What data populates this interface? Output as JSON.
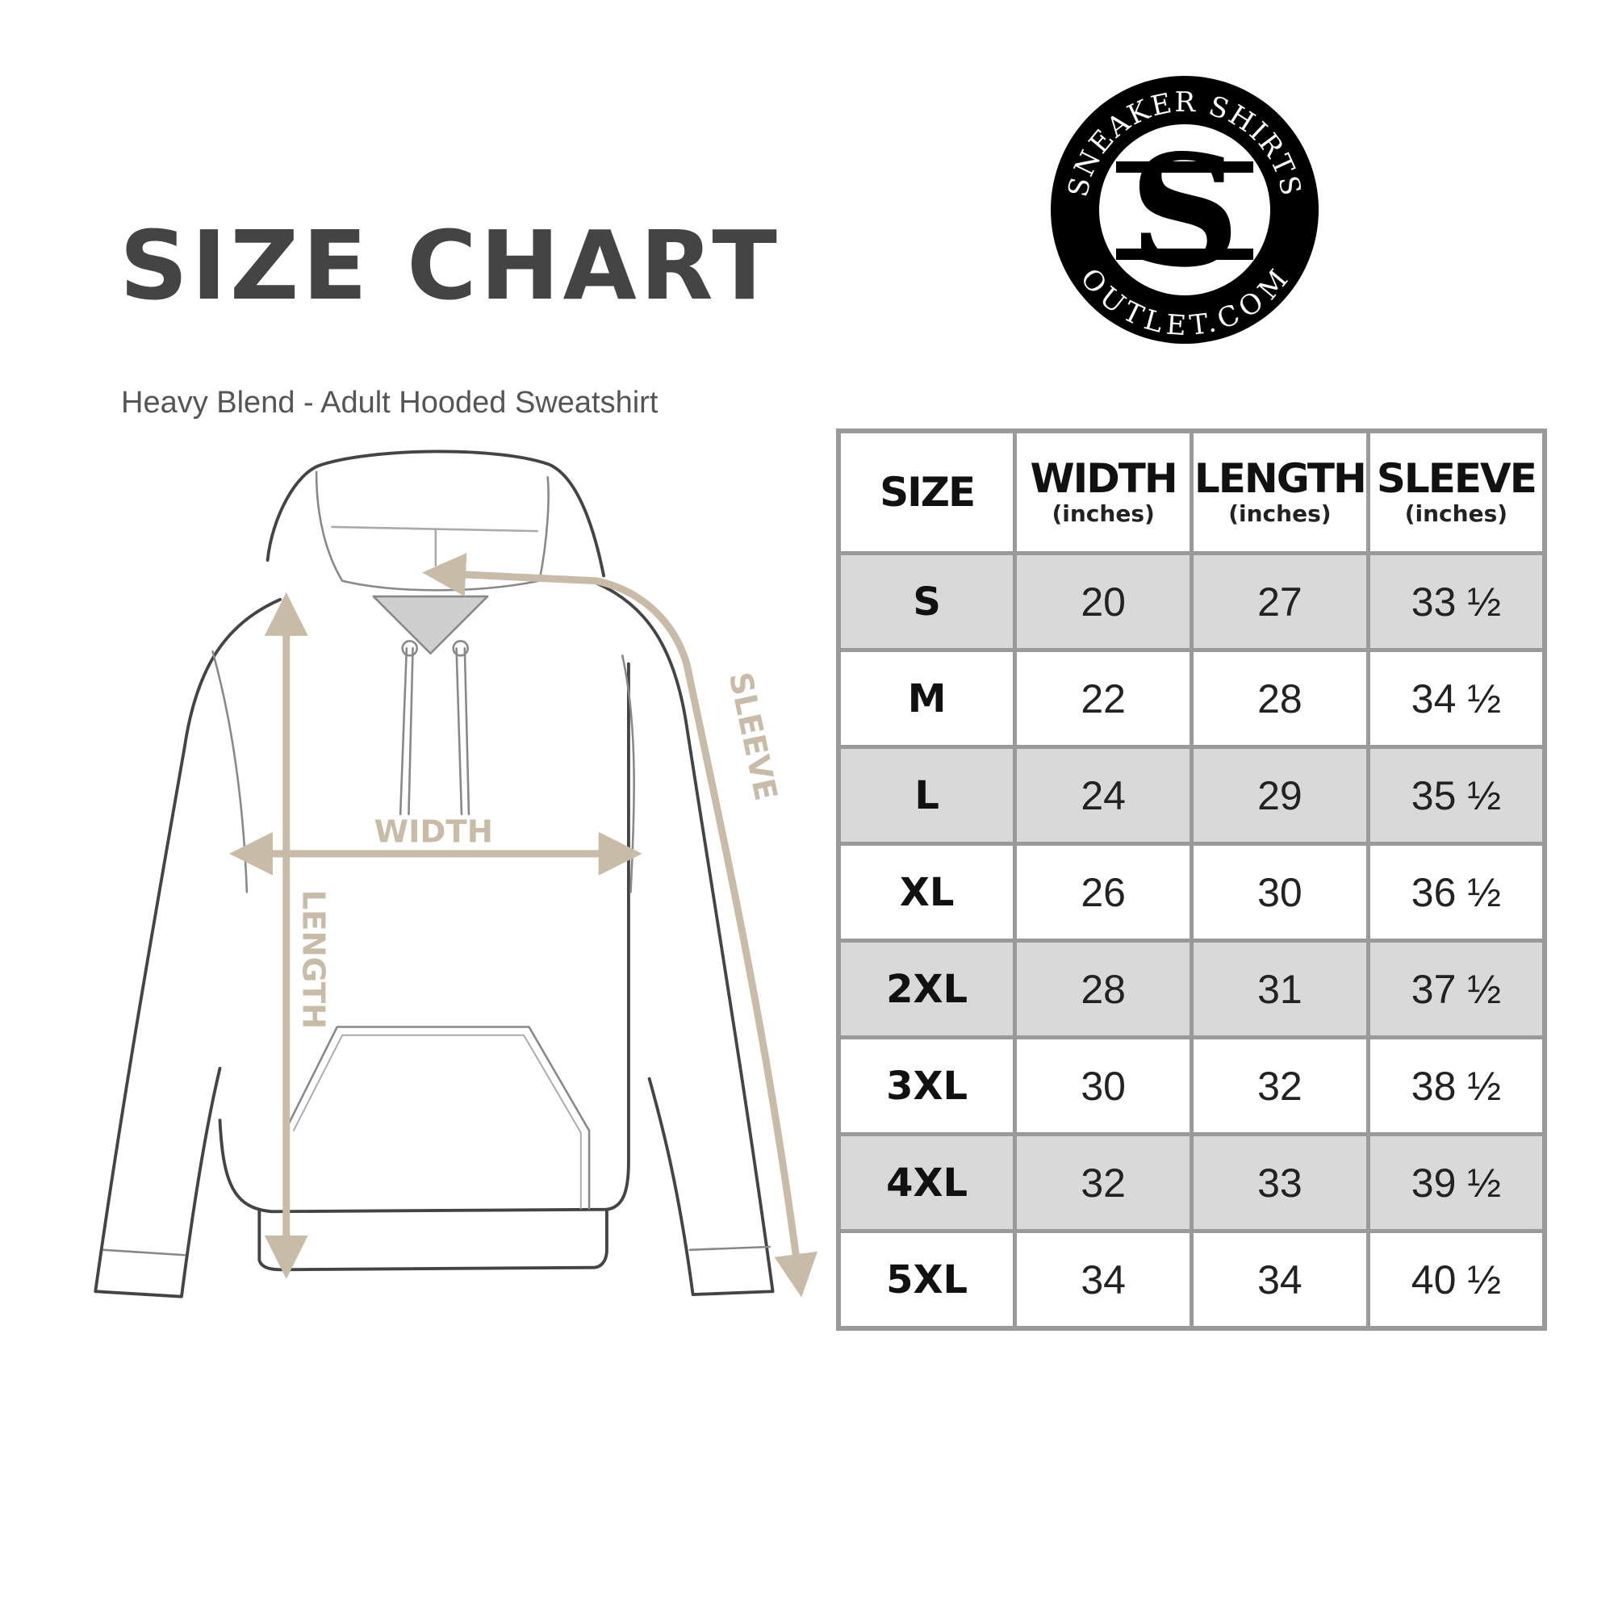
{
  "header": {
    "title": "SIZE CHART",
    "subtitle": "Heavy Blend - Adult Hooded Sweatshirt"
  },
  "logo": {
    "top_text": "SNEAKER SHIRTS",
    "bottom_text": "OUTLET.COM",
    "monogram": "SS"
  },
  "diagram": {
    "labels": {
      "width": "WIDTH",
      "length": "LENGTH",
      "sleeve": "SLEEVE"
    },
    "arrow_color": "#c8bba8",
    "outline_color": "#444444"
  },
  "table": {
    "headers": [
      {
        "label": "SIZE",
        "unit": ""
      },
      {
        "label": "WIDTH",
        "unit": "(inches)"
      },
      {
        "label": "LENGTH",
        "unit": "(inches)"
      },
      {
        "label": "SLEEVE",
        "unit": "(inches)"
      }
    ],
    "rows": [
      [
        "S",
        "20",
        "27",
        "33 ½"
      ],
      [
        "M",
        "22",
        "28",
        "34 ½"
      ],
      [
        "L",
        "24",
        "29",
        "35 ½"
      ],
      [
        "XL",
        "26",
        "30",
        "36 ½"
      ],
      [
        "2XL",
        "28",
        "31",
        "37 ½"
      ],
      [
        "3XL",
        "30",
        "32",
        "38 ½"
      ],
      [
        "4XL",
        "32",
        "33",
        "39 ½"
      ],
      [
        "5XL",
        "34",
        "34",
        "40 ½"
      ]
    ],
    "shade_color": "#d9d9d9",
    "border_color": "#9a9a9a"
  }
}
